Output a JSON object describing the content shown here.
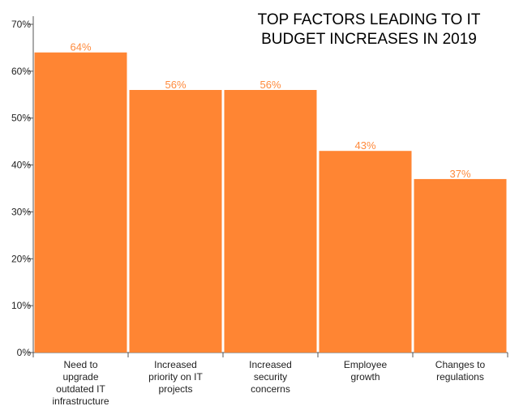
{
  "chart_data": {
    "type": "bar",
    "title_lines": [
      "TOP FACTORS LEADING TO IT",
      "BUDGET INCREASES IN 2019"
    ],
    "categories": [
      "Need to upgrade outdated IT infrastructure",
      "Increased priority on IT projects",
      "Increased security concerns",
      "Employee growth",
      "Changes to regulations"
    ],
    "category_label_lines": [
      [
        "Need to",
        "upgrade",
        "outdated IT",
        "infrastructure"
      ],
      [
        "Increased",
        "priority on IT",
        "projects"
      ],
      [
        "Increased",
        "security",
        "concerns"
      ],
      [
        "Employee",
        "growth"
      ],
      [
        "Changes to",
        "regulations"
      ]
    ],
    "values": [
      64,
      56,
      56,
      43,
      37
    ],
    "data_labels": [
      "64%",
      "56%",
      "56%",
      "43%",
      "37%"
    ],
    "ylim": [
      0,
      70
    ],
    "yticks": [
      0,
      10,
      20,
      30,
      40,
      50,
      60,
      70
    ],
    "ytick_labels": [
      "0%",
      "10%",
      "20%",
      "30%",
      "40%",
      "50%",
      "60%",
      "70%"
    ],
    "bar_color": "#ff8533",
    "label_color": "#ff8a3c",
    "xlabel": "",
    "ylabel": "",
    "grid": false,
    "legend": "none"
  }
}
